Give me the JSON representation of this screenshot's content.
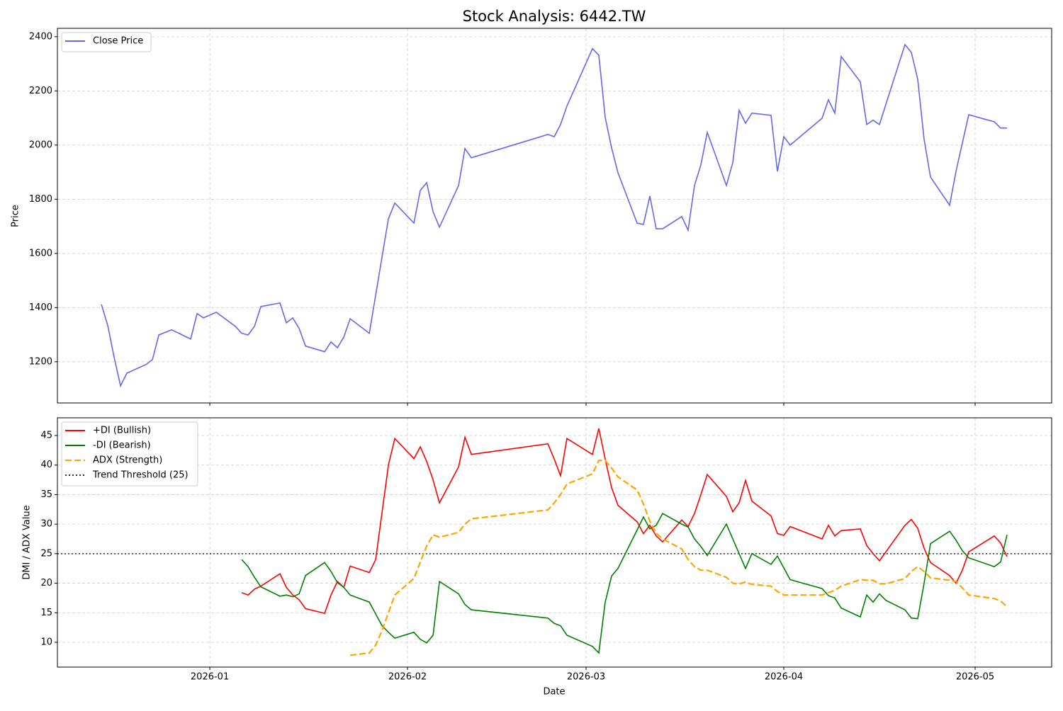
{
  "chart_data": [
    {
      "type": "line",
      "title": "Stock Analysis: 6442.TW",
      "y_label": "Price",
      "x": [
        -17,
        -16,
        -15,
        -14,
        -13,
        -10,
        -9,
        -8,
        -6,
        -3,
        -2,
        -1,
        1,
        4,
        5,
        6,
        7,
        8,
        11,
        12,
        13,
        14,
        15,
        18,
        19,
        20,
        21,
        22,
        25,
        26,
        27,
        28,
        29,
        32,
        33,
        34,
        35,
        36,
        39,
        40,
        41,
        53,
        54,
        55,
        56,
        60,
        61,
        62,
        63,
        64,
        67,
        68,
        69,
        70,
        71,
        74,
        75,
        76,
        77,
        78,
        81,
        82,
        83,
        84,
        85,
        88,
        89,
        90,
        91,
        96,
        97,
        98,
        99,
        102,
        103,
        104,
        105,
        106,
        109,
        110,
        111,
        112,
        113,
        116,
        117,
        118,
        119,
        123,
        124,
        125
      ],
      "series": [
        {
          "name": "Close Price",
          "color": "#6666ee",
          "linestyle": "solid",
          "values": [
            1412,
            1333,
            1216,
            1111,
            1158,
            1190,
            1208,
            1299,
            1318,
            1284,
            1378,
            1362,
            1383,
            1331,
            1305,
            1299,
            1331,
            1404,
            1417,
            1344,
            1362,
            1323,
            1258,
            1237,
            1273,
            1252,
            1291,
            1359,
            1305,
            1446,
            1587,
            1728,
            1786,
            1712,
            1833,
            1861,
            1754,
            1697,
            1851,
            1987,
            1953,
            2039,
            2031,
            2076,
            2144,
            2356,
            2332,
            2102,
            1990,
            1898,
            1712,
            1707,
            1812,
            1691,
            1691,
            1736,
            1686,
            1851,
            1927,
            2047,
            1851,
            1935,
            2128,
            2081,
            2118,
            2110,
            1903,
            2031,
            2000,
            2099,
            2167,
            2118,
            2327,
            2233,
            2076,
            2092,
            2076,
            2150,
            2371,
            2342,
            2243,
            2021,
            1882,
            1778,
            1903,
            2008,
            2112,
            2086,
            2063,
            2063
          ]
        }
      ],
      "xlim": [
        -23.9,
        132
      ],
      "xticks": [
        0,
        31,
        59,
        90,
        120
      ],
      "ylim": [
        1048,
        2431
      ],
      "yticks": [
        1200,
        1400,
        1600,
        1800,
        2000,
        2200,
        2400
      ],
      "grid": true,
      "legend": "upper left"
    },
    {
      "type": "line",
      "x_label": "Date",
      "y_label": "DMI / ADX Value",
      "x": [
        -17,
        -16,
        -15,
        -14,
        -13,
        -10,
        -9,
        -8,
        -6,
        -3,
        -2,
        -1,
        1,
        4,
        5,
        6,
        7,
        8,
        11,
        12,
        13,
        14,
        15,
        18,
        19,
        20,
        21,
        22,
        25,
        26,
        27,
        28,
        29,
        32,
        33,
        34,
        35,
        36,
        39,
        40,
        41,
        53,
        54,
        55,
        56,
        60,
        61,
        62,
        63,
        64,
        67,
        68,
        69,
        70,
        71,
        74,
        75,
        76,
        77,
        78,
        81,
        82,
        83,
        84,
        85,
        88,
        89,
        90,
        91,
        96,
        97,
        98,
        99,
        102,
        103,
        104,
        105,
        106,
        109,
        110,
        111,
        112,
        113,
        116,
        117,
        118,
        119,
        123,
        124,
        125
      ],
      "series": [
        {
          "name": "+DI (Bullish)",
          "color": "#ff0000",
          "linestyle": "solid",
          "values": [
            null,
            null,
            null,
            null,
            null,
            null,
            null,
            null,
            null,
            null,
            null,
            null,
            null,
            null,
            18.4,
            18.0,
            19.0,
            19.5,
            21.6,
            19.3,
            18.0,
            17.2,
            15.7,
            14.9,
            18.0,
            20.3,
            19.3,
            22.9,
            21.8,
            24.0,
            32.0,
            40.0,
            44.5,
            41.1,
            43.1,
            40.6,
            37.5,
            33.6,
            39.7,
            44.7,
            41.8,
            43.6,
            41.0,
            38.2,
            44.5,
            41.8,
            46.2,
            41.0,
            36.2,
            33.2,
            30.4,
            28.4,
            29.8,
            28.0,
            27.0,
            30.7,
            29.6,
            31.8,
            35.0,
            38.4,
            34.7,
            32.1,
            33.6,
            37.4,
            33.9,
            31.4,
            28.4,
            28.1,
            29.6,
            27.5,
            29.8,
            28.0,
            28.9,
            29.2,
            26.4,
            25.0,
            23.8,
            25.3,
            29.8,
            30.8,
            29.3,
            25.9,
            23.5,
            21.3,
            20.0,
            22.2,
            25.3,
            28.0,
            26.8,
            24.5
          ]
        },
        {
          "name": "-DI (Bearish)",
          "color": "#008000",
          "linestyle": "solid",
          "values": [
            null,
            null,
            null,
            null,
            null,
            null,
            null,
            null,
            null,
            null,
            null,
            null,
            null,
            null,
            24.0,
            22.8,
            21.0,
            19.4,
            17.8,
            18.0,
            17.7,
            18.2,
            21.3,
            23.5,
            22.0,
            20.1,
            19.3,
            18.0,
            16.8,
            14.8,
            12.8,
            11.7,
            10.7,
            11.7,
            10.5,
            9.9,
            11.2,
            20.3,
            18.2,
            16.4,
            15.5,
            14.1,
            13.2,
            12.8,
            11.2,
            9.3,
            8.2,
            16.8,
            21.2,
            22.5,
            29.0,
            31.2,
            29.2,
            29.8,
            31.8,
            30.0,
            29.5,
            27.5,
            26.2,
            24.7,
            30.0,
            27.5,
            25.0,
            22.5,
            25.0,
            23.2,
            24.6,
            22.6,
            20.6,
            19.1,
            17.9,
            17.5,
            15.8,
            14.3,
            18.0,
            16.8,
            18.2,
            17.1,
            15.5,
            14.1,
            14.0,
            20.0,
            26.7,
            28.8,
            27.3,
            25.5,
            24.3,
            22.8,
            23.6,
            28.2
          ]
        },
        {
          "name": "ADX (Strength)",
          "color": "#ffa500",
          "linestyle": "dashed",
          "values": [
            null,
            null,
            null,
            null,
            null,
            null,
            null,
            null,
            null,
            null,
            null,
            null,
            null,
            null,
            null,
            null,
            null,
            null,
            null,
            null,
            null,
            null,
            null,
            null,
            null,
            null,
            null,
            7.8,
            8.2,
            9.5,
            12.0,
            15.0,
            18.0,
            20.8,
            23.6,
            26.3,
            28.2,
            27.8,
            28.6,
            30.0,
            30.9,
            32.4,
            33.6,
            35.0,
            36.8,
            38.5,
            40.8,
            40.8,
            39.5,
            38.0,
            35.8,
            33.4,
            30.5,
            28.5,
            27.5,
            25.8,
            24.0,
            22.8,
            22.2,
            22.2,
            21.0,
            20.0,
            19.9,
            20.2,
            19.8,
            19.5,
            18.6,
            18.0,
            18.0,
            18.0,
            18.4,
            18.8,
            19.5,
            20.6,
            20.5,
            20.5,
            19.9,
            19.9,
            20.8,
            22.0,
            22.8,
            22.0,
            20.9,
            20.5,
            20.3,
            19.2,
            18.0,
            17.4,
            17.0,
            16.0
          ]
        }
      ],
      "hline": {
        "name": "Trend Threshold (25)",
        "value": 25,
        "color": "#333333",
        "linestyle": "dotted"
      },
      "xlim": [
        -23.9,
        132
      ],
      "xticks": [
        {
          "value": 0,
          "label": "2026-01"
        },
        {
          "value": 31,
          "label": "2026-02"
        },
        {
          "value": 59,
          "label": "2026-03"
        },
        {
          "value": 90,
          "label": "2026-04"
        },
        {
          "value": 120,
          "label": "2026-05"
        }
      ],
      "ylim": [
        5.8,
        48.0
      ],
      "yticks": [
        10,
        15,
        20,
        25,
        30,
        35,
        40,
        45
      ],
      "grid": true,
      "legend": "upper left"
    }
  ]
}
